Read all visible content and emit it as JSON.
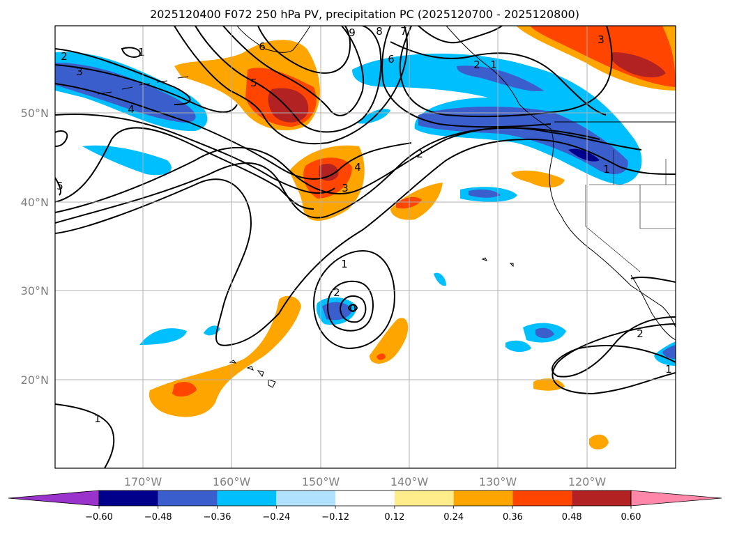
{
  "title": "2025120400 F072 250 hPa PV, precipitation PC (2025120700 - 2025120800)",
  "lat_labels": [
    "50°N",
    "40°N",
    "30°N",
    "20°N"
  ],
  "lon_labels": [
    "170°W",
    "160°W",
    "150°W",
    "140°W",
    "130°W",
    "120°W"
  ],
  "colorbar": {
    "colors": [
      "#9933cc",
      "#00008b",
      "#3a5fcd",
      "#00bfff",
      "#b0e2ff",
      "#ffffff",
      "#ffec8b",
      "#ffa500",
      "#ff4500",
      "#b22222",
      "#ff88aa"
    ],
    "ticks": [
      "−0.60",
      "−0.48",
      "−0.36",
      "−0.24",
      "−0.12",
      "0.12",
      "0.24",
      "0.36",
      "0.48",
      "0.60"
    ]
  },
  "contour_labels": [
    "2",
    "3",
    "4",
    "1",
    "5",
    "6",
    "8",
    "9",
    "7",
    "6",
    "2",
    "5",
    "4",
    "3",
    "2",
    "1",
    "1",
    "2",
    "0",
    "2",
    "1",
    "1",
    "3",
    "1"
  ],
  "colors": {
    "contour": "#000000",
    "grid": "#b0b0b0",
    "coast": "#000000"
  }
}
